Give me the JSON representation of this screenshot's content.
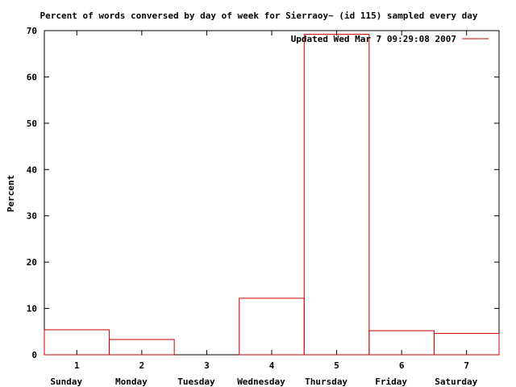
{
  "chart_data": {
    "type": "bar",
    "title": "Percent of words conversed by day of week for Sierraoy~ (id 115) sampled every day",
    "xlabel": "",
    "ylabel": "Percent",
    "x": [
      1,
      2,
      3,
      4,
      5,
      6,
      7
    ],
    "x_tick_labels": [
      "1",
      "2",
      "3",
      "4",
      "5",
      "6",
      "7"
    ],
    "categories": [
      "Sunday",
      "Monday",
      "Tuesday",
      "Wednesday",
      "Thursday",
      "Friday",
      "Saturday"
    ],
    "series": [
      {
        "name": "Updated Wed Mar  7 09:29:08 2007",
        "values": [
          5.4,
          3.3,
          0,
          12.2,
          69.2,
          5.2,
          4.6
        ],
        "color": "#cc0000"
      }
    ],
    "xlim": [
      0.5,
      7.5
    ],
    "ylim": [
      0,
      70
    ],
    "y_ticks": [
      0,
      10,
      20,
      30,
      40,
      50,
      60,
      70
    ],
    "grid": false,
    "legend_position": "top-right",
    "style": "steps"
  }
}
